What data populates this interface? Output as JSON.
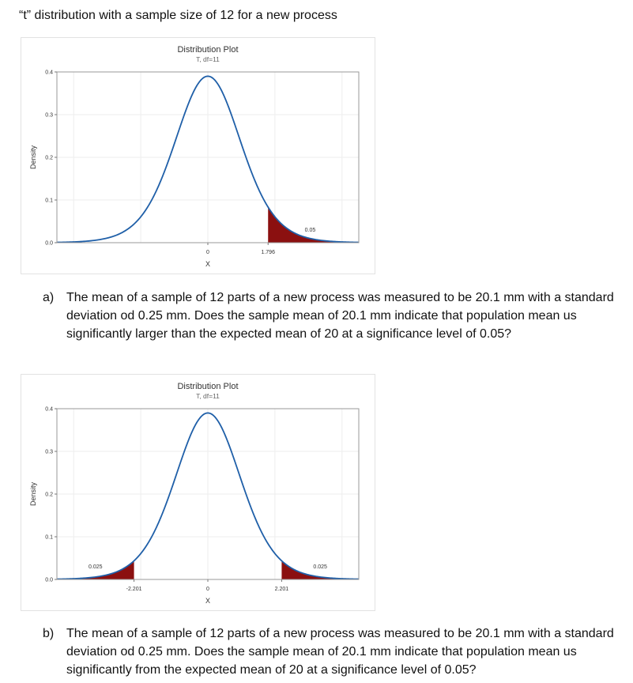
{
  "heading": "“t” distribution with a sample size of 12 for a new process",
  "question_a": {
    "marker": "a)",
    "text": "The mean of a sample of 12 parts of a new process was measured to be 20.1 mm with a standard deviation od 0.25 mm.  Does the sample mean of 20.1 mm indicate that population mean us significantly larger than the expected mean of 20 at a significance level of 0.05?"
  },
  "question_b": {
    "marker": "b)",
    "text": "The mean of a sample of 12 parts of a new process was measured to be 20.1 mm with a standard deviation od 0.25 mm.  Does the sample mean of 20.1 mm indicate that population mean us significantly from the expected mean of 20 at a significance level of 0.05?"
  },
  "colors": {
    "curve": "#1f5fa8",
    "shade": "#8b1010",
    "grid": "#eeeeee",
    "frame": "#9a9a9a"
  },
  "chart_data": [
    {
      "type": "area",
      "title": "Distribution Plot",
      "subtitle": "T, df=11",
      "xlabel": "X",
      "ylabel": "Density",
      "distribution": "t",
      "df": 11,
      "xlim": [
        -4.5,
        4.5
      ],
      "ylim": [
        0,
        0.4
      ],
      "yticks": [
        "0.0",
        "0.1",
        "0.2",
        "0.3",
        "0.4"
      ],
      "y_tick_values": [
        0,
        0.1,
        0.2,
        0.3,
        0.4
      ],
      "xticks": [
        {
          "value": 0,
          "label": "0"
        },
        {
          "value": 1.796,
          "label": "1.796"
        }
      ],
      "shaded_regions": [
        {
          "from": 1.796,
          "to": 4.5,
          "area_label": "0.05",
          "label_x": 3.05
        }
      ],
      "grid": true
    },
    {
      "type": "area",
      "title": "Distribution Plot",
      "subtitle": "T, df=11",
      "xlabel": "X",
      "ylabel": "Density",
      "distribution": "t",
      "df": 11,
      "xlim": [
        -4.5,
        4.5
      ],
      "ylim": [
        0,
        0.4
      ],
      "yticks": [
        "0.0",
        "0.1",
        "0.2",
        "0.3",
        "0.4"
      ],
      "y_tick_values": [
        0,
        0.1,
        0.2,
        0.3,
        0.4
      ],
      "xticks": [
        {
          "value": -2.201,
          "label": "-2.201"
        },
        {
          "value": 0,
          "label": "0"
        },
        {
          "value": 2.201,
          "label": "2.201"
        }
      ],
      "shaded_regions": [
        {
          "from": -4.5,
          "to": -2.201,
          "area_label": "0.025",
          "label_x": -3.35
        },
        {
          "from": 2.201,
          "to": 4.5,
          "area_label": "0.025",
          "label_x": 3.35
        }
      ],
      "grid": true
    }
  ]
}
